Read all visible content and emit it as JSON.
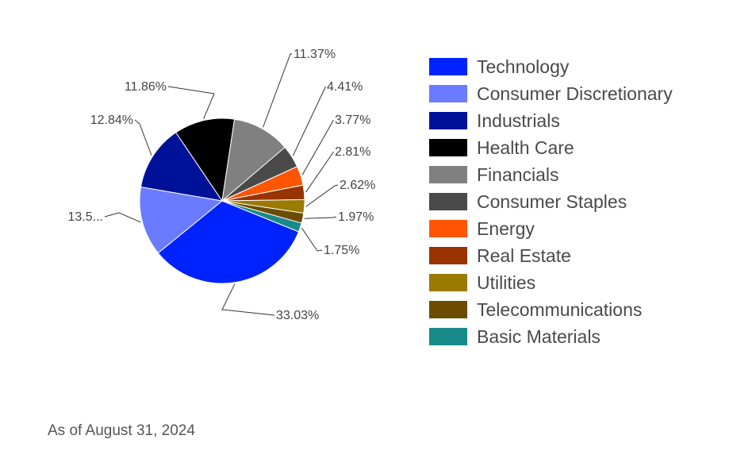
{
  "chart_data": {
    "type": "pie",
    "title": "",
    "slices": [
      {
        "name": "Technology",
        "value": 33.03,
        "label": "33.03%",
        "color": "#0022ff"
      },
      {
        "name": "Consumer Discretionary",
        "value": 13.56,
        "label": "13.5...",
        "color": "#6b7bff"
      },
      {
        "name": "Industrials",
        "value": 12.84,
        "label": "12.84%",
        "color": "#001199"
      },
      {
        "name": "Health Care",
        "value": 11.86,
        "label": "11.86%",
        "color": "#000000"
      },
      {
        "name": "Financials",
        "value": 11.37,
        "label": "11.37%",
        "color": "#808080"
      },
      {
        "name": "Consumer Staples",
        "value": 4.41,
        "label": "4.41%",
        "color": "#4a4a4a"
      },
      {
        "name": "Energy",
        "value": 3.77,
        "label": "3.77%",
        "color": "#ff5500"
      },
      {
        "name": "Real Estate",
        "value": 2.81,
        "label": "2.81%",
        "color": "#993300"
      },
      {
        "name": "Utilities",
        "value": 2.62,
        "label": "2.62%",
        "color": "#9a7a00"
      },
      {
        "name": "Telecommunications",
        "value": 1.97,
        "label": "1.97%",
        "color": "#6b4c00"
      },
      {
        "name": "Basic Materials",
        "value": 1.75,
        "label": "1.75%",
        "color": "#188a8a"
      }
    ],
    "legend_position": "right"
  },
  "legend": {
    "items": [
      "Technology",
      "Consumer Discretionary",
      "Industrials",
      "Health Care",
      "Financials",
      "Consumer Staples",
      "Energy",
      "Real Estate",
      "Utilities",
      "Telecommunications",
      "Basic Materials"
    ]
  },
  "footer": {
    "as_of": "As of August 31, 2024"
  }
}
